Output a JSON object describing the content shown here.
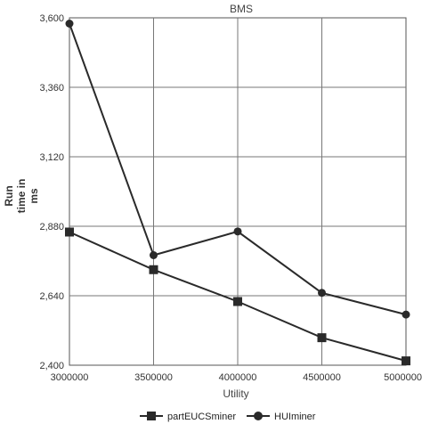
{
  "chart_data": {
    "type": "line",
    "title": "BMS",
    "xlabel": "Utility",
    "ylabel_lines": [
      "Run",
      "time in",
      "ms"
    ],
    "categories": [
      "3000000",
      "3500000",
      "4000000",
      "4500000",
      "5000000"
    ],
    "yticks": [
      "2,400",
      "2,640",
      "2,880",
      "3,120",
      "3,360",
      "3,600"
    ],
    "ylim": [
      2400,
      3600
    ],
    "grid": true,
    "legend_position": "bottom",
    "series": [
      {
        "name": "partEUCSminer",
        "marker": "square",
        "color": "#2a2a2a",
        "values": [
          2860,
          2730,
          2620,
          2495,
          2415
        ]
      },
      {
        "name": "HUIminer",
        "marker": "circle",
        "color": "#2a2a2a",
        "values": [
          3580,
          2780,
          2862,
          2650,
          2575
        ]
      }
    ]
  }
}
